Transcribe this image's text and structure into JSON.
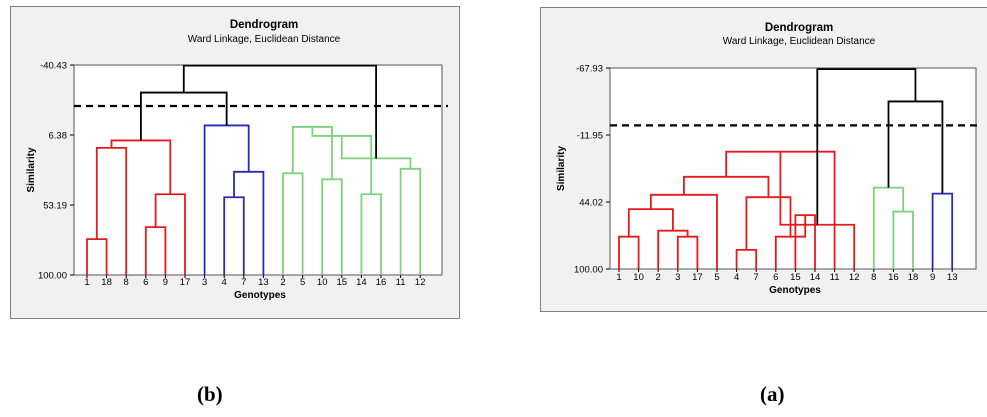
{
  "chart_data": [
    {
      "panel": "b",
      "type": "dendrogram",
      "title": "Dendrogram",
      "subtitle": "Ward Linkage, Euclidean Distance",
      "xlabel": "Genotypes",
      "ylabel": "Similarity",
      "yticks": [
        "-40.43",
        "6.38",
        "53.19",
        "100.00"
      ],
      "ytick_values": [
        -40.43,
        6.38,
        53.19,
        100.0
      ],
      "ylim": [
        100.0,
        -40.43
      ],
      "leaves": [
        "1",
        "18",
        "8",
        "6",
        "9",
        "17",
        "3",
        "4",
        "7",
        "13",
        "2",
        "5",
        "10",
        "15",
        "14",
        "16",
        "11",
        "12"
      ],
      "merges": [
        {
          "a": "L0",
          "b": "L1",
          "sim": 76,
          "color": "#e8191b"
        },
        {
          "a": "N0",
          "b": "L2",
          "sim": 15,
          "color": "#e8191b"
        },
        {
          "a": "L3",
          "b": "L4",
          "sim": 68,
          "color": "#e8191b"
        },
        {
          "a": "N2",
          "b": "L5",
          "sim": 46,
          "color": "#e8191b"
        },
        {
          "a": "N1",
          "b": "N3",
          "sim": 10,
          "color": "#e8191b"
        },
        {
          "a": "L7",
          "b": "L8",
          "sim": 48,
          "color": "#2a2ab4"
        },
        {
          "a": "N5",
          "b": "L9",
          "sim": 31,
          "color": "#2a2ab4"
        },
        {
          "a": "L6",
          "b": "N6",
          "sim": 0,
          "color": "#2a2ab4"
        },
        {
          "a": "L10",
          "b": "L11",
          "sim": 32,
          "color": "#7ed27a"
        },
        {
          "a": "L12",
          "b": "L13",
          "sim": 36,
          "color": "#7ed27a"
        },
        {
          "a": "N8",
          "b": "N9",
          "sim": 1,
          "color": "#7ed27a"
        },
        {
          "a": "L14",
          "b": "L15",
          "sim": 46,
          "color": "#7ed27a"
        },
        {
          "a": "N10",
          "b": "N11",
          "sim": 7,
          "color": "#7ed27a"
        },
        {
          "a": "L16",
          "b": "L17",
          "sim": 29,
          "color": "#7ed27a"
        },
        {
          "a": "N12",
          "b": "N13",
          "sim": 22,
          "color": "#7ed27a"
        },
        {
          "a": "N4",
          "b": "N7",
          "sim": -22,
          "color": "#000000"
        },
        {
          "a": "N15",
          "b": "N14",
          "sim": -40,
          "color": "#000000"
        }
      ],
      "cut_line": -13
    },
    {
      "panel": "a",
      "type": "dendrogram",
      "title": "Dendrogram",
      "subtitle": "Ward Linkage, Euclidean Distance",
      "xlabel": "Genotypes",
      "ylabel": "Similarity",
      "yticks": [
        "-67.93",
        "-11.95",
        "44.02",
        "100.00"
      ],
      "ytick_values": [
        -67.93,
        -11.95,
        44.02,
        100.0
      ],
      "ylim": [
        100.0,
        -67.93
      ],
      "leaves": [
        "1",
        "10",
        "2",
        "3",
        "17",
        "5",
        "4",
        "7",
        "6",
        "15",
        "14",
        "11",
        "12",
        "8",
        "16",
        "18",
        "9",
        "13"
      ],
      "merges": [
        {
          "a": "L0",
          "b": "L1",
          "sim": 73,
          "color": "#e8191b"
        },
        {
          "a": "L3",
          "b": "L4",
          "sim": 73,
          "color": "#e8191b"
        },
        {
          "a": "L2",
          "b": "N1",
          "sim": 68,
          "color": "#e8191b"
        },
        {
          "a": "N0",
          "b": "N2",
          "sim": 50,
          "color": "#e8191b"
        },
        {
          "a": "N3",
          "b": "L5",
          "sim": 38,
          "color": "#e8191b"
        },
        {
          "a": "L6",
          "b": "L7",
          "sim": 84,
          "color": "#e8191b"
        },
        {
          "a": "L9",
          "b": "L10",
          "sim": 55,
          "color": "#e8191b"
        },
        {
          "a": "L8",
          "b": "N6",
          "sim": 73,
          "color": "#e8191b"
        },
        {
          "a": "N5",
          "b": "N7",
          "sim": 40,
          "color": "#e8191b"
        },
        {
          "a": "N4",
          "b": "N8",
          "sim": 23,
          "color": "#e8191b"
        },
        {
          "a": "N9",
          "b": "L11",
          "sim": 2,
          "color": "#e8191b"
        },
        {
          "a": "L12",
          "b": "N10",
          "sim": 63,
          "color": "#e8191b"
        },
        {
          "a": "L14",
          "b": "L15",
          "sim": 52,
          "color": "#7ed27a"
        },
        {
          "a": "L13",
          "b": "N12",
          "sim": 32,
          "color": "#7ed27a"
        },
        {
          "a": "L16",
          "b": "L17",
          "sim": 37,
          "color": "#2a2ab4"
        },
        {
          "a": "N13",
          "b": "N14",
          "sim": -40,
          "color": "#000000"
        },
        {
          "a": "N11",
          "b": "N15",
          "sim": -67,
          "color": "#000000"
        }
      ],
      "cut_line": -20
    }
  ],
  "captions": {
    "b": "(b)",
    "a": "(a)"
  }
}
